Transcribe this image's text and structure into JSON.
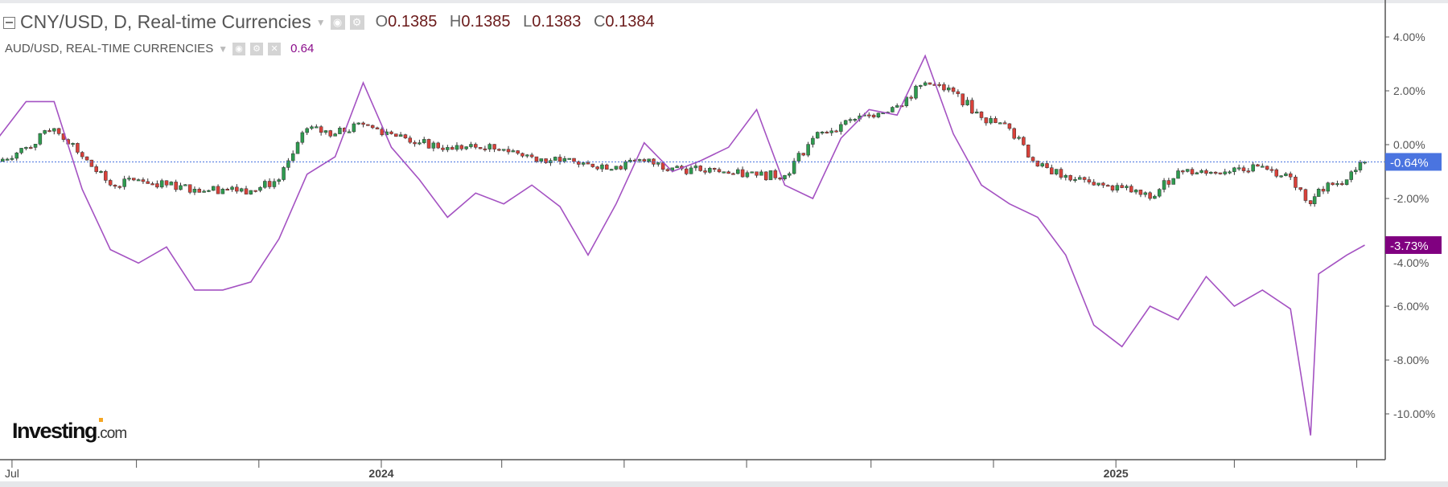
{
  "legend": {
    "main_title": "CNY/USD, D, Real-time Currencies",
    "ohlc": [
      {
        "key": "O",
        "value": "0.1385"
      },
      {
        "key": "H",
        "value": "0.1385"
      },
      {
        "key": "L",
        "value": "0.1383"
      },
      {
        "key": "C",
        "value": "0.1384"
      }
    ],
    "compare_title": "AUD/USD, REAL-TIME CURRENCIES",
    "compare_value": "0.64"
  },
  "logo": {
    "name": "Investing",
    "suffix": ".com"
  },
  "chart_data": {
    "type": "line",
    "yaxis": {
      "ticks": [
        "4.00%",
        "2.00%",
        "0.00%",
        "-2.00%",
        "-4.00%",
        "-6.00%",
        "-8.00%",
        "-10.00%"
      ],
      "ylim": [
        -12,
        5
      ],
      "unit": "%"
    },
    "xaxis": {
      "tick_labels": [
        {
          "date": "2023-07-01",
          "label": "Jul"
        },
        {
          "date": "2023-09-01",
          "label": ""
        },
        {
          "date": "2023-11-01",
          "label": ""
        },
        {
          "date": "2024-01-01",
          "label": "2024"
        },
        {
          "date": "2024-03-01",
          "label": ""
        },
        {
          "date": "2024-05-01",
          "label": ""
        },
        {
          "date": "2024-07-01",
          "label": ""
        },
        {
          "date": "2024-09-01",
          "label": ""
        },
        {
          "date": "2024-11-01",
          "label": ""
        },
        {
          "date": "2025-01-01",
          "label": "2025"
        },
        {
          "date": "2025-03-01",
          "label": ""
        },
        {
          "date": "2025-05-01",
          "label": ""
        }
      ]
    },
    "grid": false,
    "dates": [
      "2023-06-24",
      "2023-07-08",
      "2023-07-22",
      "2023-08-05",
      "2023-08-19",
      "2023-09-02",
      "2023-09-16",
      "2023-09-30",
      "2023-10-14",
      "2023-10-28",
      "2023-11-11",
      "2023-11-25",
      "2023-12-09",
      "2023-12-23",
      "2024-01-06",
      "2024-01-20",
      "2024-02-03",
      "2024-02-17",
      "2024-03-02",
      "2024-03-16",
      "2024-03-30",
      "2024-04-13",
      "2024-04-27",
      "2024-05-11",
      "2024-05-25",
      "2024-06-08",
      "2024-06-22",
      "2024-07-06",
      "2024-07-20",
      "2024-08-03",
      "2024-08-17",
      "2024-08-31",
      "2024-09-14",
      "2024-09-28",
      "2024-10-12",
      "2024-10-26",
      "2024-11-09",
      "2024-11-23",
      "2024-12-07",
      "2024-12-21",
      "2025-01-04",
      "2025-01-18",
      "2025-02-01",
      "2025-02-15",
      "2025-03-01",
      "2025-03-15",
      "2025-03-29",
      "2025-04-08",
      "2025-04-12",
      "2025-04-26",
      "2025-05-05"
    ],
    "series": [
      {
        "name": "CNY/USD",
        "style": "candlestick",
        "color_up": "#2e9b4f",
        "color_down": "#d9413a",
        "last_label": "-0.64%",
        "label_color": "#4a74e0",
        "values": [
          -0.62,
          -0.1,
          0.6,
          -0.45,
          -1.5,
          -1.3,
          -1.5,
          -1.65,
          -1.65,
          -1.7,
          -1.3,
          0.6,
          0.4,
          0.75,
          0.4,
          0.07,
          -0.1,
          -0.1,
          -0.17,
          -0.45,
          -0.62,
          -0.72,
          -0.8,
          -0.62,
          -0.86,
          -0.97,
          -1.07,
          -1.14,
          -1.14,
          0.24,
          0.75,
          1.1,
          1.45,
          2.3,
          1.97,
          1.0,
          0.6,
          -0.8,
          -1.14,
          -1.5,
          -1.6,
          -2.0,
          -0.97,
          -1.07,
          -0.86,
          -0.8,
          -1.2,
          -2.2,
          -1.65,
          -1.3,
          -0.64
        ]
      },
      {
        "name": "AUD/USD",
        "style": "line",
        "color": "#a452c2",
        "last_label": "-3.73%",
        "label_color": "#800080",
        "values": [
          0.24,
          1.6,
          1.6,
          -1.66,
          -3.9,
          -4.4,
          -3.8,
          -5.4,
          -5.4,
          -5.1,
          -3.5,
          -1.1,
          -0.45,
          2.3,
          -0.1,
          -1.3,
          -2.7,
          -1.8,
          -2.2,
          -1.5,
          -2.3,
          -4.1,
          -2.2,
          0.07,
          -1.0,
          -0.6,
          -0.1,
          1.3,
          -1.5,
          -2.0,
          0.24,
          1.3,
          1.1,
          3.3,
          0.4,
          -1.5,
          -2.2,
          -2.7,
          -4.1,
          -6.7,
          -7.5,
          -6.0,
          -6.5,
          -4.9,
          -6.0,
          -5.4,
          -6.1,
          -10.8,
          -4.8,
          -4.1,
          -3.73
        ]
      }
    ]
  }
}
